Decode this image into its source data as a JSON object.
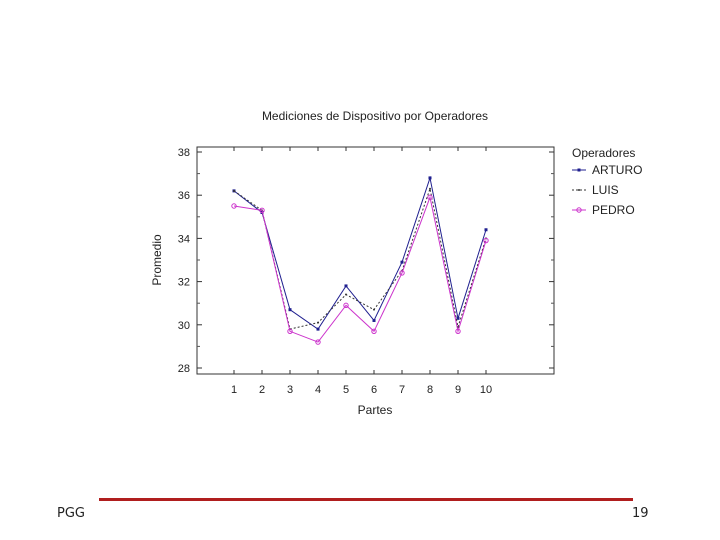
{
  "slide": {
    "footer_left": "PGG",
    "page_number": "19",
    "accent_color": "#b01e1e"
  },
  "chart_data": {
    "type": "line",
    "title": "Mediciones de Dispositivo por Operadores",
    "xlabel": "Partes",
    "ylabel": "Promedio",
    "categories": [
      "1",
      "2",
      "3",
      "4",
      "5",
      "6",
      "7",
      "8",
      "9",
      "10"
    ],
    "ylim": [
      28,
      38
    ],
    "yticks": [
      "28",
      "30",
      "32",
      "34",
      "36",
      "38"
    ],
    "legend_title": "Operadores",
    "legend_position": "right",
    "grid": false,
    "series": [
      {
        "name": "ARTURO",
        "values": [
          36.2,
          35.2,
          30.7,
          29.8,
          31.8,
          30.2,
          32.9,
          36.8,
          30.3,
          34.4
        ],
        "color": "#1f1f8f",
        "marker": "square"
      },
      {
        "name": "LUIS",
        "values": [
          36.2,
          35.3,
          29.8,
          30.1,
          31.4,
          30.7,
          32.5,
          36.3,
          29.9,
          34.0
        ],
        "color": "#333333",
        "marker": "dot"
      },
      {
        "name": "PEDRO",
        "values": [
          35.5,
          35.3,
          29.7,
          29.2,
          30.9,
          29.7,
          32.4,
          35.9,
          29.7,
          33.9
        ],
        "color": "#cc33cc",
        "marker": "circle"
      }
    ]
  }
}
